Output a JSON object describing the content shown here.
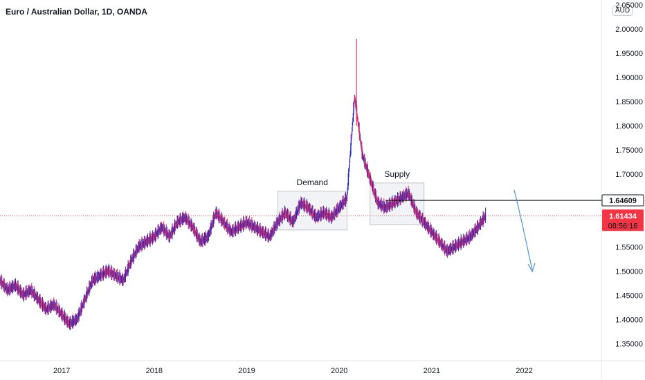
{
  "header": {
    "title": "Euro / Australian Dollar, 1D, OANDA",
    "price_unit": "AUD"
  },
  "colors": {
    "bull": "#2b2bb8",
    "bear": "#e0306a",
    "current_line": "#f23645",
    "level_line": "#131722",
    "zone_fill": "#eceef3",
    "zone_stroke": "#b2b5be",
    "arrow": "#4a90d9"
  },
  "chart_data": {
    "type": "line",
    "title": "Euro / Australian Dollar, 1D, OANDA",
    "xlabel": "",
    "ylabel": "",
    "x_ticks": [
      "2017",
      "2018",
      "2019",
      "2020",
      "2021",
      "2022"
    ],
    "y_ticks": [
      "1.35000",
      "1.40000",
      "1.45000",
      "1.50000",
      "1.55000",
      "1.60000",
      "1.65000",
      "1.70000",
      "1.75000",
      "1.80000",
      "1.85000",
      "1.90000",
      "1.95000",
      "2.00000",
      "2.05000"
    ],
    "ylim": [
      1.315,
      2.06
    ],
    "xlim": [
      "2016-05",
      "2022-11"
    ],
    "grid": false,
    "series": [
      {
        "x": [
          "2016-05",
          "2016-06",
          "2016-07",
          "2016-08",
          "2016-09",
          "2016-10",
          "2016-11",
          "2016-12",
          "2017-01",
          "2017-02",
          "2017-03",
          "2017-04",
          "2017-05",
          "2017-06",
          "2017-07",
          "2017-08",
          "2017-09",
          "2017-10",
          "2017-11",
          "2017-12",
          "2018-01",
          "2018-02",
          "2018-03",
          "2018-04",
          "2018-05",
          "2018-06",
          "2018-07",
          "2018-08",
          "2018-09",
          "2018-10",
          "2018-11",
          "2018-12",
          "2019-01",
          "2019-02",
          "2019-03",
          "2019-04",
          "2019-05",
          "2019-06",
          "2019-07",
          "2019-08",
          "2019-09",
          "2019-10",
          "2019-11",
          "2019-12",
          "2020-01",
          "2020-02",
          "2020-03",
          "2020-04",
          "2020-05",
          "2020-06",
          "2020-07",
          "2020-08",
          "2020-09",
          "2020-10",
          "2020-11",
          "2020-12",
          "2021-01",
          "2021-02",
          "2021-03",
          "2021-04",
          "2021-05",
          "2021-06",
          "2021-07",
          "2021-08"
        ],
        "y": [
          1.48,
          1.46,
          1.47,
          1.45,
          1.46,
          1.44,
          1.42,
          1.43,
          1.41,
          1.39,
          1.4,
          1.44,
          1.48,
          1.49,
          1.5,
          1.49,
          1.48,
          1.52,
          1.55,
          1.56,
          1.57,
          1.59,
          1.57,
          1.6,
          1.61,
          1.59,
          1.56,
          1.57,
          1.62,
          1.6,
          1.58,
          1.59,
          1.6,
          1.59,
          1.58,
          1.57,
          1.6,
          1.62,
          1.6,
          1.64,
          1.63,
          1.61,
          1.62,
          1.61,
          1.63,
          1.65,
          1.86,
          1.74,
          1.69,
          1.64,
          1.63,
          1.64,
          1.65,
          1.66,
          1.62,
          1.6,
          1.58,
          1.56,
          1.54,
          1.55,
          1.56,
          1.57,
          1.59,
          1.614
        ]
      }
    ],
    "current_price": "1.61434",
    "countdown": "08:56:16",
    "level": "1.64609",
    "annotations": [
      {
        "label": "Demand",
        "x_from": "2019-05",
        "x_to": "2020-02",
        "y_from": 1.585,
        "y_to": 1.665
      },
      {
        "label": "Supply",
        "x_from": "2020-05",
        "x_to": "2020-12",
        "y_from": 1.596,
        "y_to": 1.682
      }
    ]
  }
}
